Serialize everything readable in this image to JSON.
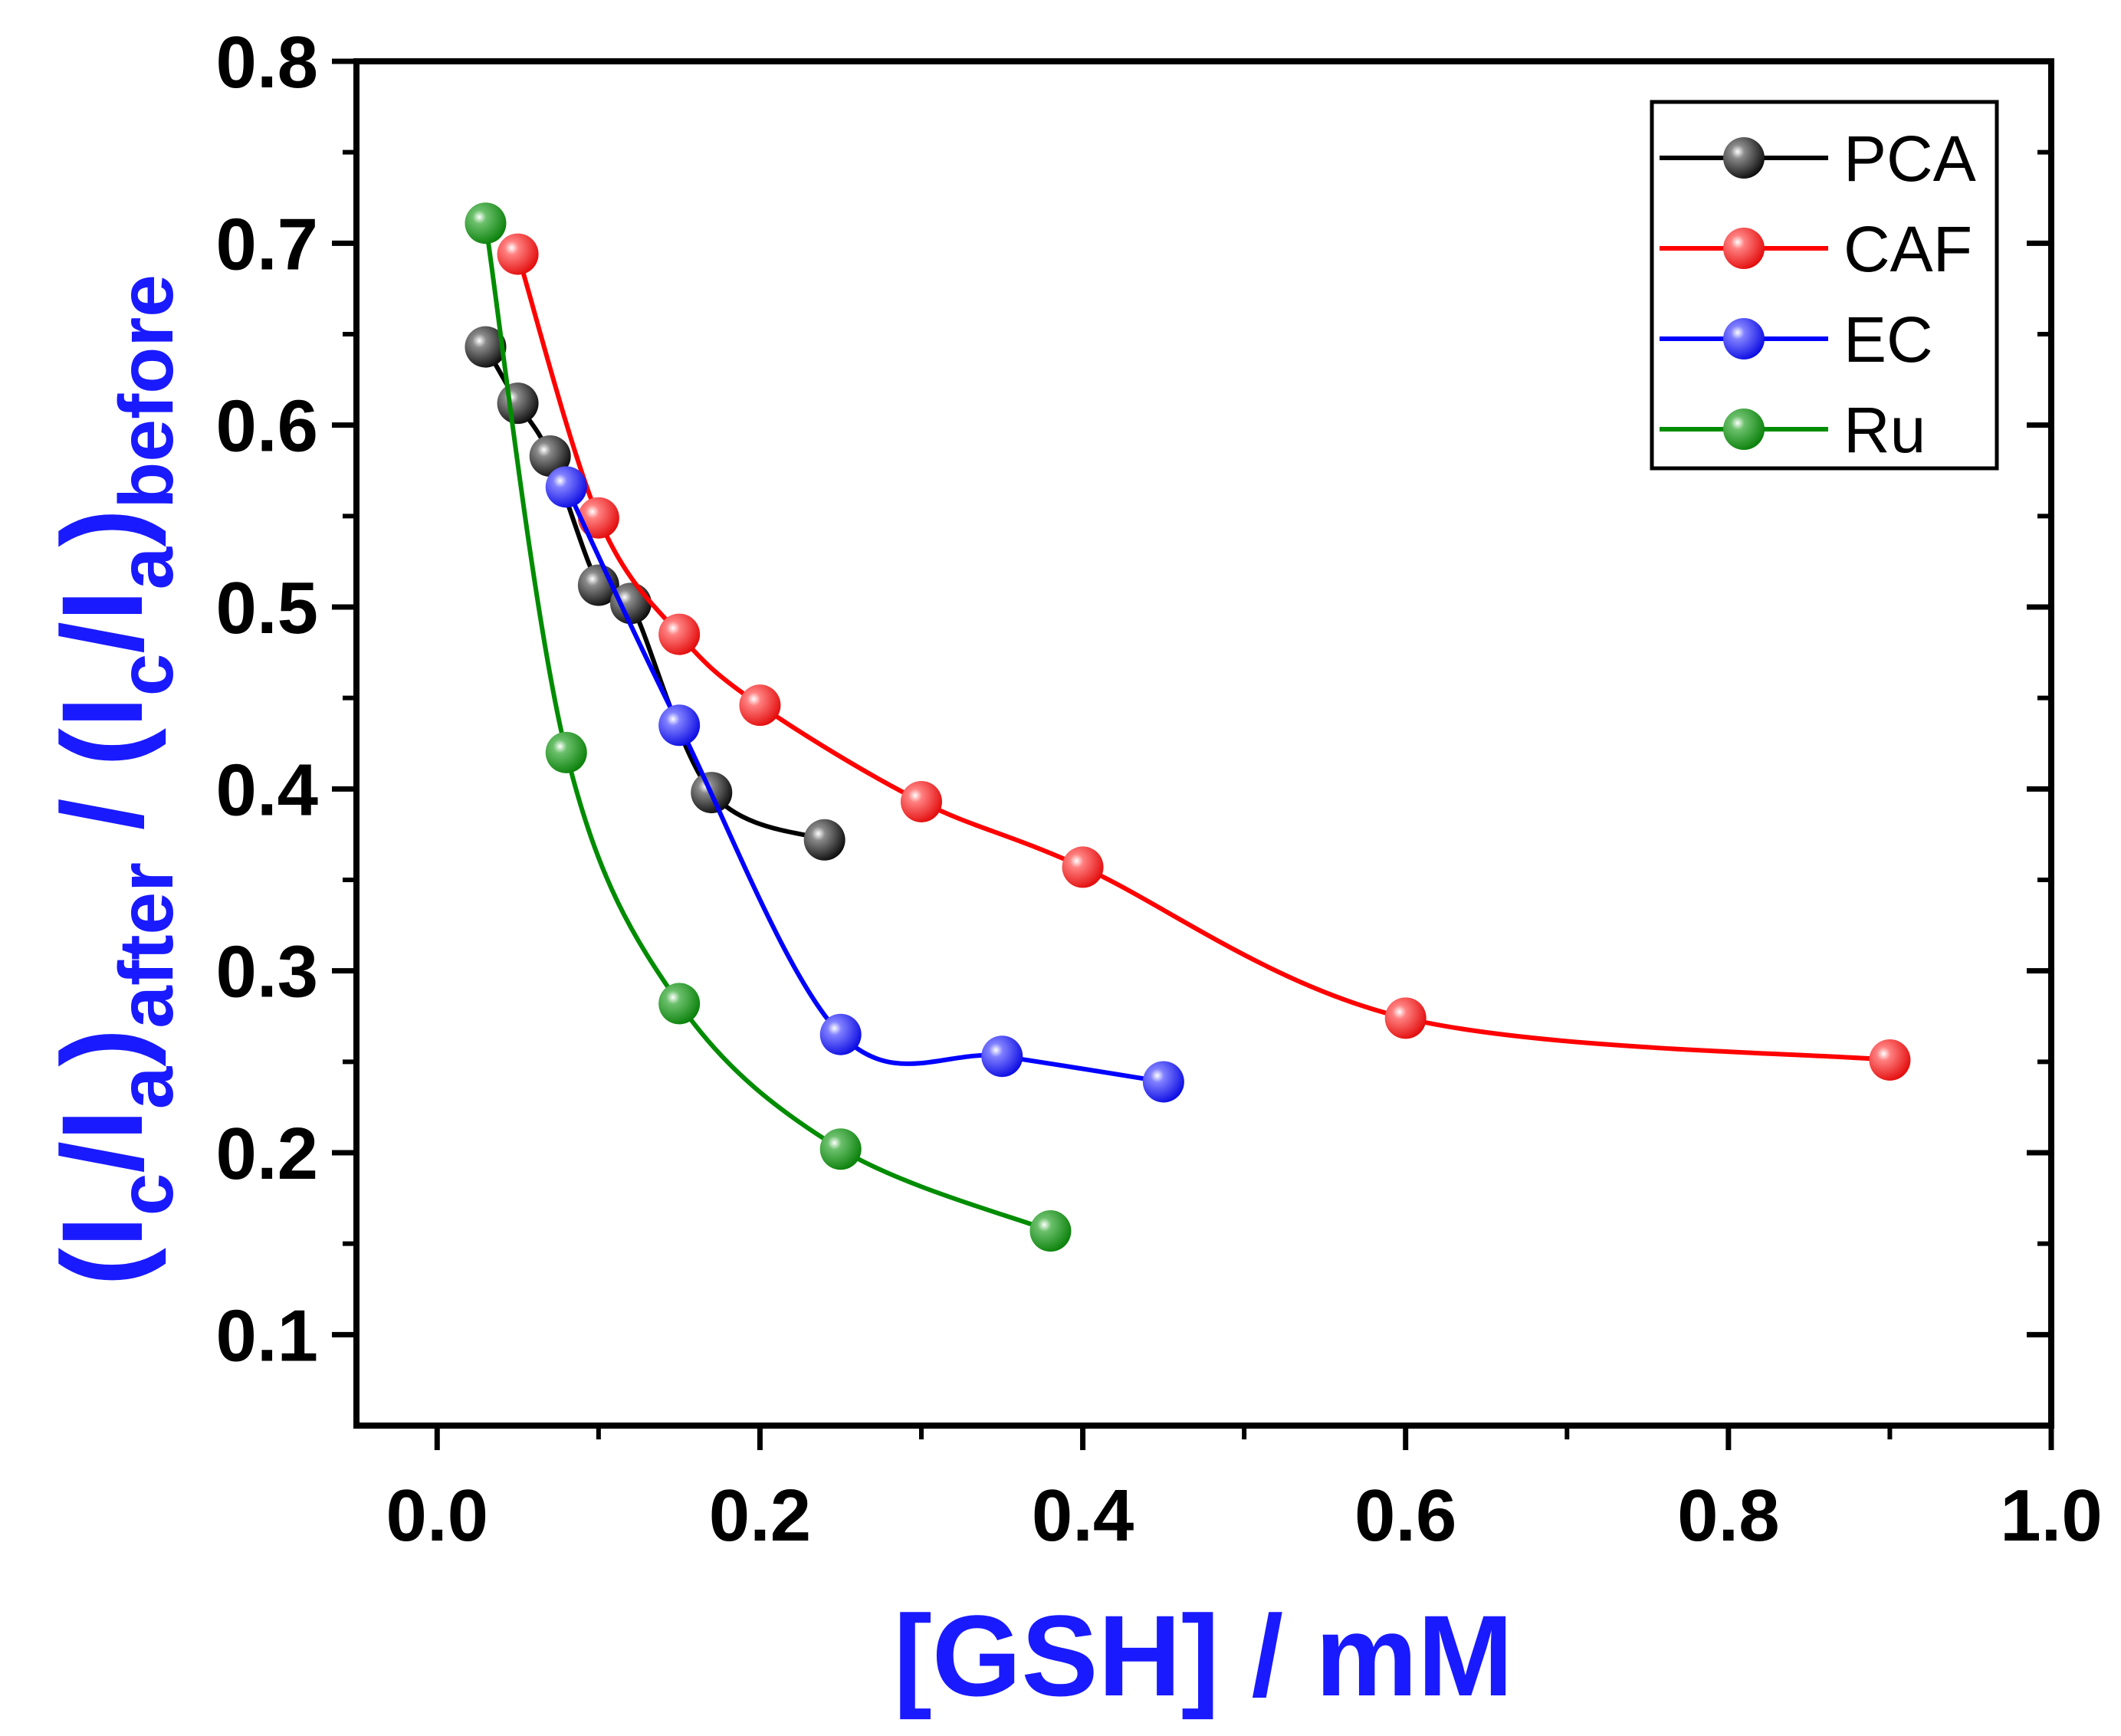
{
  "chart_data": {
    "type": "line",
    "title": "",
    "xlabel": "[GSH] / mM",
    "ylabel": {
      "parts": [
        "(I",
        "c",
        "/I",
        "a",
        ")",
        "after",
        " / (I",
        "c",
        "/I",
        "a",
        ")",
        "before"
      ]
    },
    "xlim": [
      -0.05,
      1.0
    ],
    "ylim": [
      0.05,
      0.8
    ],
    "x_ticks": [
      0.0,
      0.2,
      0.4,
      0.6,
      0.8,
      1.0
    ],
    "x_tick_labels": [
      "0.0",
      "0.2",
      "0.4",
      "0.6",
      "0.8",
      "1.0"
    ],
    "y_ticks": [
      0.1,
      0.2,
      0.3,
      0.4,
      0.5,
      0.6,
      0.7,
      0.8
    ],
    "y_tick_labels": [
      "0.1",
      "0.2",
      "0.3",
      "0.4",
      "0.5",
      "0.6",
      "0.7",
      "0.8"
    ],
    "legend_position": "top-right",
    "series": [
      {
        "name": "PCA",
        "color": "#000000",
        "x": [
          0.03,
          0.05,
          0.07,
          0.1,
          0.12,
          0.17,
          0.24
        ],
        "y": [
          0.643,
          0.612,
          0.583,
          0.512,
          0.502,
          0.398,
          0.372
        ]
      },
      {
        "name": "CAF",
        "color": "#ff0000",
        "x": [
          0.05,
          0.1,
          0.15,
          0.2,
          0.3,
          0.4,
          0.6,
          0.9
        ],
        "y": [
          0.694,
          0.549,
          0.485,
          0.446,
          0.393,
          0.357,
          0.274,
          0.251
        ]
      },
      {
        "name": "EC",
        "color": "#0000ff",
        "x": [
          0.08,
          0.15,
          0.25,
          0.35,
          0.45
        ],
        "y": [
          0.566,
          0.435,
          0.265,
          0.253,
          0.239
        ]
      },
      {
        "name": "Ru",
        "color": "#008c00",
        "x": [
          0.03,
          0.08,
          0.15,
          0.25,
          0.38
        ],
        "y": [
          0.711,
          0.42,
          0.282,
          0.202,
          0.157
        ]
      }
    ]
  }
}
